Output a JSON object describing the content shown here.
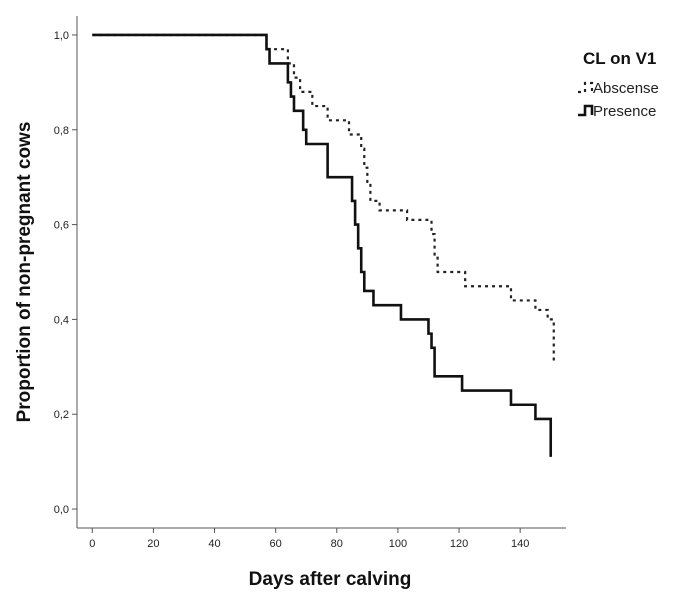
{
  "chart_data": {
    "type": "line",
    "xlabel": "Days after calving",
    "ylabel": "Proportion of non-pregnant cows",
    "xlim": [
      -5,
      155
    ],
    "ylim": [
      -0.04,
      1.04
    ],
    "x_ticks": [
      0,
      20,
      40,
      60,
      80,
      100,
      120,
      140
    ],
    "y_ticks": [
      {
        "value": 0.0,
        "label": "0,0"
      },
      {
        "value": 0.2,
        "label": "0,2"
      },
      {
        "value": 0.4,
        "label": "0,4"
      },
      {
        "value": 0.6,
        "label": "0,6"
      },
      {
        "value": 0.8,
        "label": "0,8"
      },
      {
        "value": 1.0,
        "label": "1,0"
      }
    ],
    "grid": false,
    "step": true,
    "legend": {
      "title": "CL on V1",
      "position": "right"
    },
    "series": [
      {
        "name": "Abscense",
        "style": "dotted",
        "color": "#222222",
        "points": [
          [
            0,
            1.0
          ],
          [
            56,
            1.0
          ],
          [
            57,
            0.97
          ],
          [
            63,
            0.97
          ],
          [
            64,
            0.94
          ],
          [
            66,
            0.91
          ],
          [
            68,
            0.88
          ],
          [
            71,
            0.88
          ],
          [
            72,
            0.85
          ],
          [
            76,
            0.85
          ],
          [
            77,
            0.82
          ],
          [
            83,
            0.82
          ],
          [
            84,
            0.79
          ],
          [
            87,
            0.79
          ],
          [
            88,
            0.76
          ],
          [
            89,
            0.72
          ],
          [
            90,
            0.69
          ],
          [
            91,
            0.65
          ],
          [
            93,
            0.65
          ],
          [
            94,
            0.63
          ],
          [
            102,
            0.63
          ],
          [
            103,
            0.61
          ],
          [
            110,
            0.61
          ],
          [
            111,
            0.58
          ],
          [
            112,
            0.53
          ],
          [
            113,
            0.5
          ],
          [
            121,
            0.5
          ],
          [
            122,
            0.47
          ],
          [
            136,
            0.47
          ],
          [
            137,
            0.44
          ],
          [
            144,
            0.44
          ],
          [
            145,
            0.42
          ],
          [
            148,
            0.42
          ],
          [
            149,
            0.4
          ],
          [
            151,
            0.4
          ],
          [
            151,
            0.31
          ]
        ]
      },
      {
        "name": "Presence",
        "style": "solid",
        "color": "#111111",
        "points": [
          [
            0,
            1.0
          ],
          [
            56,
            1.0
          ],
          [
            57,
            0.97
          ],
          [
            58,
            0.94
          ],
          [
            63,
            0.94
          ],
          [
            64,
            0.9
          ],
          [
            65,
            0.87
          ],
          [
            66,
            0.84
          ],
          [
            68,
            0.84
          ],
          [
            69,
            0.8
          ],
          [
            70,
            0.77
          ],
          [
            76,
            0.77
          ],
          [
            77,
            0.7
          ],
          [
            84,
            0.7
          ],
          [
            85,
            0.65
          ],
          [
            86,
            0.6
          ],
          [
            87,
            0.55
          ],
          [
            88,
            0.5
          ],
          [
            89,
            0.46
          ],
          [
            91,
            0.46
          ],
          [
            92,
            0.43
          ],
          [
            100,
            0.43
          ],
          [
            101,
            0.4
          ],
          [
            109,
            0.4
          ],
          [
            110,
            0.37
          ],
          [
            111,
            0.34
          ],
          [
            112,
            0.28
          ],
          [
            120,
            0.28
          ],
          [
            121,
            0.25
          ],
          [
            136,
            0.25
          ],
          [
            137,
            0.22
          ],
          [
            144,
            0.22
          ],
          [
            145,
            0.19
          ],
          [
            149,
            0.19
          ],
          [
            150,
            0.19
          ],
          [
            150,
            0.11
          ]
        ]
      }
    ]
  }
}
